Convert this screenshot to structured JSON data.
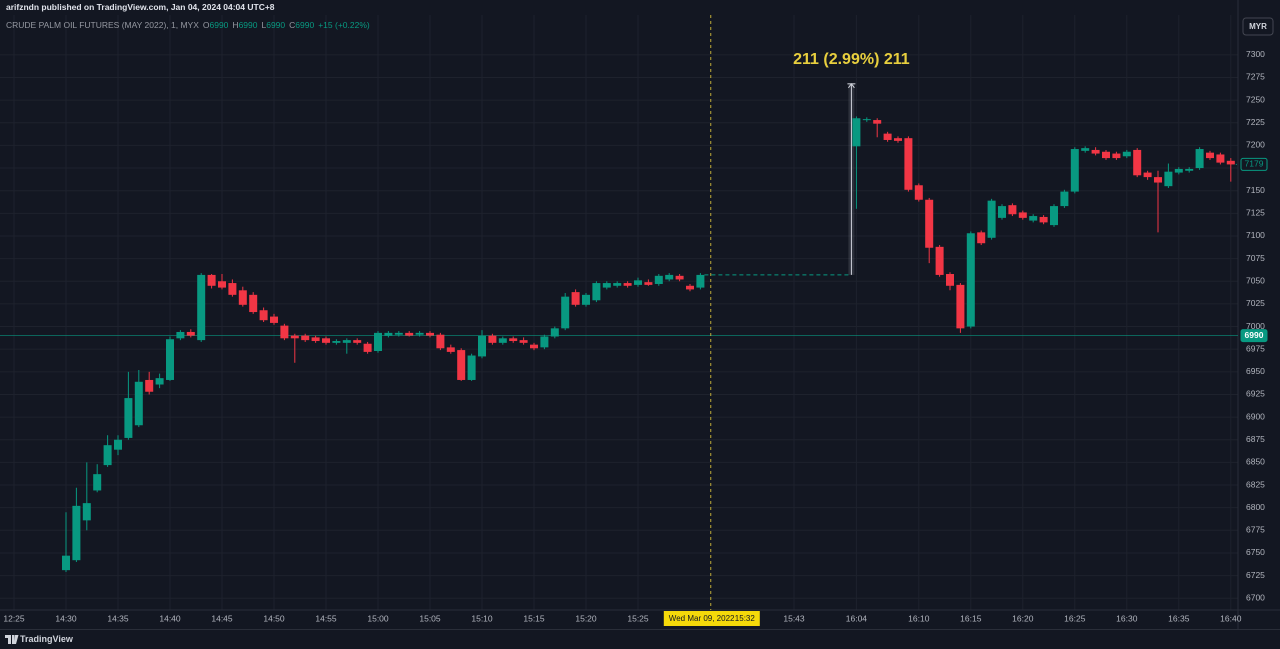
{
  "published": "arifzndn published on TradingView.com, Jan 04, 2024 04:04 UTC+8",
  "currency": "MYR",
  "footer": "TradingView",
  "chart_data": {
    "type": "candlestick",
    "title": "CRUDE PALM OIL FUTURES (MAY 2022), 1, MYX",
    "legend": [
      {
        "label": "O",
        "value": 6990
      },
      {
        "label": "H",
        "value": 6990
      },
      {
        "label": "L",
        "value": 6990
      },
      {
        "label": "C",
        "value": 6990
      }
    ],
    "change": "+15 (+0.22%)",
    "categories": [
      "12:25",
      null,
      null,
      null,
      null,
      "14:30",
      null,
      null,
      null,
      null,
      "14:35",
      null,
      null,
      null,
      null,
      "14:40",
      null,
      null,
      null,
      null,
      "14:45",
      null,
      null,
      null,
      null,
      "14:50",
      null,
      null,
      null,
      null,
      "14:55",
      null,
      null,
      null,
      null,
      "15:00",
      null,
      null,
      null,
      null,
      "15:05",
      null,
      null,
      null,
      null,
      "15:10",
      null,
      null,
      null,
      null,
      "15:15",
      null,
      null,
      null,
      null,
      "15:20",
      null,
      null,
      null,
      null,
      "15:25",
      null,
      null,
      null,
      null,
      null,
      null,
      null,
      null,
      null,
      null,
      null,
      null,
      null,
      null,
      "15:43",
      null,
      null,
      null,
      null,
      null,
      "16:04",
      null,
      null,
      null,
      null,
      null,
      "16:10",
      null,
      null,
      null,
      null,
      "16:15",
      null,
      null,
      null,
      null,
      "16:20",
      null,
      null,
      null,
      null,
      "16:25",
      null,
      null,
      null,
      null,
      "16:30",
      null,
      null,
      null,
      null,
      "16:35",
      null,
      null,
      null,
      null,
      "16:40"
    ],
    "open": [
      null,
      null,
      null,
      null,
      null,
      6731,
      6742,
      6786,
      6819,
      6847,
      6864,
      6877,
      6891,
      6941,
      6936,
      6941,
      6987,
      6994,
      6985,
      7057,
      7050,
      7048,
      7040,
      7035,
      7018,
      7011,
      7001,
      6990,
      6990,
      6988,
      6987,
      6982,
      6982,
      6985,
      6981,
      6973,
      6990,
      6991,
      6993,
      6991,
      6993,
      6991,
      6977,
      6974,
      6941,
      6967,
      6990,
      6982,
      6987,
      6985,
      6980,
      6977,
      6989,
      6998,
      7038,
      7024,
      7029,
      7043,
      7045,
      7048,
      7046,
      7049,
      7047,
      7052,
      7056,
      7045,
      7043,
      null,
      null,
      null,
      null,
      null,
      null,
      null,
      null,
      null,
      null,
      null,
      null,
      null,
      null,
      7199,
      7228,
      7228,
      7213,
      7208,
      7208,
      7156,
      7140,
      7088,
      7058,
      7046,
      7000,
      7104,
      7098,
      7120,
      7134,
      7126,
      7117,
      7121,
      7112,
      7133,
      7149,
      7194,
      7195,
      7193,
      7191,
      7188,
      7195,
      7170,
      7165,
      7155,
      7170,
      7172,
      7175,
      7192,
      7190,
      7183
    ],
    "high": [
      null,
      null,
      null,
      null,
      null,
      6795,
      6822,
      6850,
      6848,
      6880,
      6880,
      6950,
      6952,
      6950,
      6948,
      6989,
      6996,
      6997,
      7059,
      7058,
      7058,
      7052,
      7044,
      7038,
      7021,
      7014,
      7003,
      6992,
      6992,
      6990,
      6989,
      6986,
      6987,
      6987,
      6983,
      6995,
      6995,
      6995,
      6995,
      6995,
      6995,
      6993,
      6980,
      6976,
      6970,
      6996,
      6992,
      6989,
      6989,
      6988,
      6982,
      6991,
      7000,
      7037,
      7041,
      7037,
      7050,
      7050,
      7050,
      7050,
      7054,
      7052,
      7058,
      7059,
      7058,
      7047,
      7059,
      null,
      null,
      null,
      null,
      null,
      null,
      null,
      null,
      null,
      null,
      null,
      null,
      null,
      null,
      7232,
      7231,
      7230,
      7215,
      7210,
      7210,
      7158,
      7142,
      7090,
      7060,
      7048,
      7105,
      7106,
      7141,
      7135,
      7136,
      7128,
      7124,
      7123,
      7135,
      7151,
      7198,
      7199,
      7198,
      7195,
      7193,
      7195,
      7197,
      7172,
      7172,
      7180,
      7176,
      7176,
      7198,
      7194,
      7192,
      7186
    ],
    "low": [
      null,
      null,
      null,
      null,
      null,
      6729,
      6740,
      6775,
      6817,
      6845,
      6858,
      6875,
      6889,
      6925,
      6932,
      6940,
      6985,
      6988,
      6983,
      7042,
      7041,
      7033,
      7022,
      7014,
      7005,
      7002,
      6985,
      6960,
      6983,
      6982,
      6980,
      6980,
      6970,
      6980,
      6970,
      6971,
      6988,
      6989,
      6989,
      6989,
      6988,
      6974,
      6970,
      6940,
      6940,
      6965,
      6980,
      6980,
      6982,
      6980,
      6974,
      6975,
      6987,
      6996,
      7022,
      7022,
      7027,
      7041,
      7043,
      7043,
      7044,
      7045,
      7045,
      7050,
      7050,
      7039,
      7041,
      null,
      null,
      null,
      null,
      null,
      null,
      null,
      null,
      null,
      null,
      null,
      null,
      null,
      null,
      7130,
      7226,
      7209,
      7204,
      7203,
      7149,
      7138,
      7070,
      7055,
      7040,
      6993,
      6998,
      7090,
      7096,
      7118,
      7122,
      7118,
      7115,
      7113,
      7110,
      7131,
      7147,
      7192,
      7189,
      7184,
      7184,
      7186,
      7165,
      7162,
      7104,
      7153,
      7168,
      7170,
      7173,
      7184,
      7179,
      7160
    ],
    "close": [
      null,
      null,
      null,
      null,
      null,
      6747,
      6802,
      6805,
      6837,
      6869,
      6875,
      6921,
      6939,
      6928,
      6943,
      6986,
      6994,
      6990,
      7057,
      7045,
      7043,
      7035,
      7024,
      7016,
      7007,
      7004,
      6987,
      6987,
      6985,
      6984,
      6982,
      6984,
      6985,
      6982,
      6972,
      6993,
      6993,
      6993,
      6990,
      6993,
      6990,
      6976,
      6972,
      6941,
      6968,
      6990,
      6982,
      6987,
      6984,
      6982,
      6976,
      6989,
      6998,
      7033,
      7024,
      7035,
      7048,
      7048,
      7048,
      7045,
      7051,
      7046,
      7056,
      7057,
      7052,
      7041,
      7057,
      null,
      null,
      null,
      null,
      null,
      null,
      null,
      null,
      null,
      null,
      null,
      null,
      null,
      null,
      7230,
      7229,
      7224,
      7206,
      7205,
      7151,
      7140,
      7087,
      7057,
      7045,
      6998,
      7103,
      7092,
      7139,
      7133,
      7124,
      7120,
      7122,
      7115,
      7133,
      7149,
      7196,
      7197,
      7191,
      7186,
      7186,
      7193,
      7167,
      7165,
      7159,
      7171,
      7174,
      7174,
      7196,
      7186,
      7181,
      7179
    ],
    "up_color": "#089981",
    "down_color": "#f23645",
    "ylim": [
      6687,
      7344
    ],
    "yticks": [
      6700,
      6725,
      6750,
      6775,
      6800,
      6825,
      6850,
      6875,
      6900,
      6925,
      6950,
      6975,
      7000,
      7025,
      7050,
      7075,
      7100,
      7125,
      7150,
      7175,
      7200,
      7225,
      7250,
      7275,
      7300
    ],
    "grid": true,
    "price_labels": [
      {
        "value": 7179,
        "filled": false
      },
      {
        "value": 6990,
        "filled": true
      }
    ],
    "measure": {
      "from": 7057,
      "to": 7268,
      "label": "211 (2.99%) 211"
    },
    "crosshair": {
      "date": "Wed Mar 09, 2022",
      "time": "15:32"
    }
  }
}
